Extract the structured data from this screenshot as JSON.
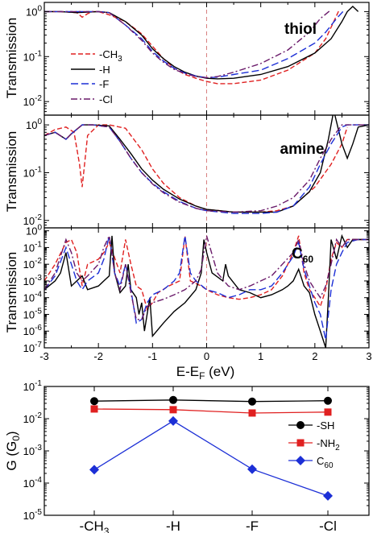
{
  "chart_data": [
    {
      "type": "line",
      "panel_label": "thiol",
      "ylabel": "Transmission",
      "yscale": "log",
      "ylim": [
        0.005,
        1.6
      ],
      "xlim": [
        -3,
        3
      ],
      "y_tick_labels": [
        "10^0",
        "10^-1",
        "10^-2"
      ],
      "legend_position": "left",
      "series": [
        {
          "name": "-CH3",
          "color": "#e02020",
          "dash": "6,3",
          "x": [
            -3,
            -2.7,
            -2.4,
            -2.3,
            -2.2,
            -2.1,
            -2.0,
            -1.8,
            -1.5,
            -1.2,
            -1.0,
            -0.8,
            -0.6,
            -0.4,
            -0.2,
            0.0,
            0.2,
            0.5,
            1.0,
            1.5,
            2.0,
            2.2,
            2.35,
            2.45
          ],
          "y": [
            1.0,
            1.0,
            0.95,
            0.75,
            0.9,
            1.0,
            1.0,
            0.85,
            0.6,
            0.32,
            0.17,
            0.09,
            0.055,
            0.04,
            0.033,
            0.028,
            0.025,
            0.025,
            0.03,
            0.05,
            0.12,
            0.25,
            0.6,
            1.1
          ]
        },
        {
          "name": "-H",
          "color": "#000000",
          "dash": "",
          "x": [
            -3,
            -2.7,
            -2.4,
            -2.0,
            -1.8,
            -1.5,
            -1.2,
            -1.0,
            -0.8,
            -0.6,
            -0.4,
            -0.2,
            0.0,
            0.2,
            0.5,
            1.0,
            1.5,
            2.0,
            2.3,
            2.5,
            2.6,
            2.7,
            2.8
          ],
          "y": [
            1.0,
            1.0,
            0.95,
            1.0,
            0.95,
            0.6,
            0.3,
            0.15,
            0.09,
            0.06,
            0.045,
            0.037,
            0.033,
            0.032,
            0.033,
            0.04,
            0.06,
            0.12,
            0.25,
            0.6,
            1.0,
            1.3,
            1.0
          ]
        },
        {
          "name": "-F",
          "color": "#1c2fd6",
          "dash": "9,4",
          "x": [
            -3,
            -2.7,
            -2.4,
            -2.0,
            -1.8,
            -1.5,
            -1.2,
            -1.0,
            -0.8,
            -0.6,
            -0.4,
            -0.2,
            0.0,
            0.2,
            0.5,
            1.0,
            1.5,
            2.0,
            2.2,
            2.4,
            2.55
          ],
          "y": [
            1.0,
            1.0,
            1.0,
            1.0,
            0.95,
            0.5,
            0.25,
            0.13,
            0.08,
            0.055,
            0.043,
            0.037,
            0.034,
            0.035,
            0.04,
            0.05,
            0.09,
            0.2,
            0.35,
            0.7,
            1.1
          ]
        },
        {
          "name": "-Cl",
          "color": "#6a1a6a",
          "dash": "8,3,2,3",
          "x": [
            -3,
            -2.7,
            -2.4,
            -2.0,
            -1.8,
            -1.5,
            -1.2,
            -1.0,
            -0.8,
            -0.6,
            -0.4,
            -0.2,
            0.0,
            0.2,
            0.5,
            1.0,
            1.5,
            1.9,
            2.1,
            2.3
          ],
          "y": [
            1.0,
            1.0,
            1.0,
            1.0,
            0.95,
            0.5,
            0.23,
            0.12,
            0.075,
            0.052,
            0.042,
            0.036,
            0.034,
            0.036,
            0.045,
            0.07,
            0.14,
            0.35,
            0.7,
            1.1
          ]
        }
      ]
    },
    {
      "type": "line",
      "panel_label": "amine",
      "ylabel": "Transmission",
      "yscale": "log",
      "ylim": [
        0.007,
        1.6
      ],
      "xlim": [
        -3,
        3
      ],
      "y_tick_labels": [
        "10^0",
        "10^-1",
        "10^-2"
      ],
      "series": [
        {
          "name": "-CH3",
          "color": "#e02020",
          "dash": "6,3",
          "x": [
            -3,
            -2.8,
            -2.6,
            -2.45,
            -2.35,
            -2.3,
            -2.2,
            -2.0,
            -1.8,
            -1.5,
            -1.2,
            -1.0,
            -0.8,
            -0.5,
            -0.2,
            0.0,
            0.5,
            1.0,
            1.3,
            1.6,
            2.0,
            2.3,
            2.5,
            2.6
          ],
          "y": [
            0.6,
            0.8,
            0.9,
            0.7,
            0.15,
            0.05,
            0.6,
            1.0,
            1.0,
            0.85,
            0.3,
            0.12,
            0.06,
            0.03,
            0.02,
            0.017,
            0.015,
            0.015,
            0.016,
            0.02,
            0.05,
            0.15,
            0.4,
            0.9
          ]
        },
        {
          "name": "-H",
          "color": "#000000",
          "dash": "",
          "x": [
            -3,
            -2.8,
            -2.6,
            -2.5,
            -2.3,
            -2.1,
            -1.8,
            -1.6,
            -1.4,
            -1.2,
            -1.0,
            -0.8,
            -0.5,
            -0.2,
            0.0,
            0.5,
            1.0,
            1.3,
            1.6,
            1.9,
            2.1,
            2.25,
            2.35,
            2.5,
            2.6,
            2.7,
            2.8,
            3.0
          ],
          "y": [
            0.6,
            0.7,
            0.5,
            0.65,
            1.0,
            1.0,
            0.95,
            0.5,
            0.25,
            0.12,
            0.07,
            0.045,
            0.028,
            0.02,
            0.017,
            0.015,
            0.015,
            0.015,
            0.02,
            0.04,
            0.1,
            0.5,
            2.0,
            0.4,
            0.2,
            0.4,
            0.9,
            1.0
          ]
        },
        {
          "name": "-F",
          "color": "#1c2fd6",
          "dash": "9,4",
          "x": [
            -3,
            -2.8,
            -2.6,
            -2.5,
            -2.3,
            -2.1,
            -1.8,
            -1.6,
            -1.4,
            -1.2,
            -1.0,
            -0.8,
            -0.5,
            -0.2,
            0.0,
            0.5,
            1.0,
            1.3,
            1.6,
            1.9,
            2.1,
            2.3,
            2.5,
            2.6,
            2.8,
            3.0
          ],
          "y": [
            0.6,
            0.7,
            0.5,
            0.65,
            1.0,
            1.0,
            0.9,
            0.45,
            0.2,
            0.1,
            0.06,
            0.04,
            0.025,
            0.018,
            0.016,
            0.014,
            0.014,
            0.015,
            0.02,
            0.05,
            0.15,
            0.4,
            0.9,
            1.0,
            1.0,
            1.0
          ]
        },
        {
          "name": "-Cl",
          "color": "#6a1a6a",
          "dash": "8,3,2,3",
          "x": [
            -3,
            -2.8,
            -2.6,
            -2.5,
            -2.3,
            -2.1,
            -1.8,
            -1.6,
            -1.4,
            -1.2,
            -1.0,
            -0.8,
            -0.5,
            -0.2,
            0.0,
            0.5,
            1.0,
            1.3,
            1.6,
            1.9,
            2.1,
            2.3,
            2.5,
            2.6,
            2.8,
            3.0
          ],
          "y": [
            0.6,
            0.7,
            0.5,
            0.65,
            1.0,
            1.0,
            0.9,
            0.45,
            0.2,
            0.1,
            0.058,
            0.038,
            0.024,
            0.018,
            0.016,
            0.015,
            0.016,
            0.02,
            0.03,
            0.07,
            0.2,
            0.5,
            1.0,
            1.0,
            1.0,
            1.0
          ]
        }
      ]
    },
    {
      "type": "line",
      "panel_label": "C60",
      "ylabel": "Transmission",
      "yscale": "log",
      "ylim": [
        1e-07,
        1.5
      ],
      "xlim": [
        -3,
        3
      ],
      "xlabel": "E-E_F (eV)",
      "x_tick_labels": [
        "-3",
        "-2",
        "-1",
        "0",
        "1",
        "2",
        "3"
      ],
      "y_tick_labels": [
        "10^0",
        "10^-1",
        "10^-2",
        "10^-3",
        "10^-4",
        "10^-5",
        "10^-6",
        "10^-7"
      ],
      "series": [
        {
          "name": "-CH3",
          "color": "#e02020",
          "dash": "6,3",
          "x": [
            -3,
            -2.8,
            -2.6,
            -2.5,
            -2.4,
            -2.3,
            -2.2,
            -2.0,
            -1.9,
            -1.8,
            -1.6,
            -1.5,
            -1.4,
            -1.3,
            -1.2,
            -1.1,
            -1.0,
            -0.9,
            -0.7,
            -0.5,
            -0.4,
            -0.3,
            -0.1,
            0.0,
            0.2,
            0.4,
            0.6,
            0.8,
            1.0,
            1.2,
            1.4,
            1.6,
            1.7,
            1.8,
            1.9,
            2.0,
            2.1,
            2.2,
            2.3,
            2.4,
            2.5,
            2.6,
            2.8,
            3.0
          ],
          "y": [
            0.001,
            0.01,
            0.2,
            0.3,
            0.05,
            0.0005,
            0.01,
            0.02,
            0.05,
            0.2,
            0.003,
            0.3,
            0.01,
            0.0005,
            0.0003,
            2e-05,
            5e-05,
            0.0002,
            0.0005,
            0.001,
            0.5,
            0.001,
            0.0005,
            0.0003,
            0.00015,
            0.0001,
            8e-05,
            0.0001,
            0.00015,
            0.0003,
            0.002,
            0.05,
            0.5,
            0.003,
            0.0003,
            0.0001,
            3e-05,
            0.0003,
            0.02,
            0.2,
            0.1,
            0.3,
            0.3,
            0.3
          ]
        },
        {
          "name": "-H",
          "color": "#000000",
          "dash": "",
          "x": [
            -3,
            -2.8,
            -2.7,
            -2.6,
            -2.5,
            -2.4,
            -2.3,
            -2.2,
            -2.0,
            -1.9,
            -1.8,
            -1.75,
            -1.7,
            -1.6,
            -1.5,
            -1.45,
            -1.4,
            -1.3,
            -1.25,
            -1.2,
            -1.15,
            -1.1,
            -1.05,
            -1.0,
            -0.8,
            -0.6,
            -0.4,
            -0.2,
            -0.1,
            -0.05,
            0.0,
            0.1,
            0.3,
            0.35,
            0.4,
            0.6,
            0.8,
            1.0,
            1.2,
            1.4,
            1.5,
            1.6,
            1.7,
            1.8,
            1.9,
            2.0,
            2.1,
            2.2,
            2.25,
            2.3,
            2.4,
            2.5,
            2.6,
            2.7,
            3.0
          ],
          "y": [
            0.0003,
            0.001,
            0.003,
            0.05,
            0.0005,
            0.001,
            0.002,
            0.0003,
            0.0005,
            0.001,
            0.002,
            0.5,
            0.003,
            0.0002,
            0.0005,
            0.01,
            0.0003,
            0.0001,
            1e-05,
            5e-05,
            1e-06,
            1e-05,
            0.0001,
            5e-07,
            3e-06,
            1.5e-05,
            5e-05,
            0.0003,
            0.003,
            0.3,
            0.05,
            0.003,
            0.001,
            0.01,
            0.002,
            0.0003,
            0.0002,
            0.0001,
            0.00015,
            0.0003,
            0.0005,
            0.001,
            0.005,
            0.0005,
            0.0002,
            1e-05,
            1e-06,
            1e-07,
            0.0001,
            0.3,
            0.02,
            0.5,
            0.1,
            0.3,
            0.3
          ]
        },
        {
          "name": "-F",
          "color": "#1c2fd6",
          "dash": "9,4",
          "x": [
            -3,
            -2.8,
            -2.6,
            -2.5,
            -2.4,
            -2.3,
            -2.2,
            -2.0,
            -1.9,
            -1.8,
            -1.7,
            -1.6,
            -1.5,
            -1.4,
            -1.3,
            -1.2,
            -1.1,
            -1.0,
            -0.8,
            -0.6,
            -0.5,
            -0.4,
            -0.3,
            -0.2,
            0.0,
            0.2,
            0.4,
            0.6,
            0.8,
            1.0,
            1.2,
            1.4,
            1.6,
            1.7,
            1.8,
            1.9,
            2.0,
            2.1,
            2.2,
            2.3,
            2.4,
            2.5,
            2.6,
            2.8,
            3.0
          ],
          "y": [
            0.0003,
            0.002,
            0.1,
            0.01,
            0.001,
            0.0003,
            0.001,
            0.003,
            0.02,
            0.5,
            0.003,
            0.0005,
            0.01,
            0.0003,
            3e-06,
            5e-06,
            5e-05,
            0.00015,
            0.0003,
            0.001,
            0.003,
            0.5,
            0.003,
            0.001,
            0.0003,
            0.0002,
            0.0001,
            0.00015,
            0.0003,
            0.0003,
            0.0005,
            0.003,
            0.03,
            0.2,
            0.005,
            0.0005,
            5e-05,
            1e-05,
            3e-07,
            0.0003,
            0.01,
            0.05,
            0.2,
            0.3,
            0.3
          ]
        },
        {
          "name": "-Cl",
          "color": "#6a1a6a",
          "dash": "8,3,2,3",
          "x": [
            -3,
            -2.8,
            -2.6,
            -2.5,
            -2.4,
            -2.3,
            -2.2,
            -2.0,
            -1.9,
            -1.8,
            -1.7,
            -1.6,
            -1.5,
            -1.4,
            -1.3,
            -1.2,
            -1.1,
            -1.0,
            -0.8,
            -0.6,
            -0.4,
            -0.2,
            -0.1,
            0.0,
            0.2,
            0.4,
            0.6,
            0.8,
            1.0,
            1.2,
            1.4,
            1.6,
            1.7,
            1.8,
            1.9,
            2.0,
            2.1,
            2.2,
            2.3,
            2.4,
            2.5,
            2.6,
            2.8,
            3.0
          ],
          "y": [
            0.0003,
            0.003,
            0.3,
            0.05,
            0.003,
            0.001,
            0.002,
            0.01,
            0.1,
            0.5,
            0.003,
            0.0003,
            0.01,
            0.0002,
            5e-06,
            5e-06,
            3e-05,
            5e-05,
            8e-05,
            0.00015,
            0.0003,
            0.001,
            0.005,
            0.5,
            0.003,
            0.0005,
            0.0003,
            0.0005,
            0.001,
            0.002,
            0.01,
            0.05,
            0.3,
            0.01,
            0.001,
            0.0003,
            0.0001,
            0.0005,
            0.01,
            0.3,
            0.1,
            0.3,
            0.3,
            0.3
          ]
        }
      ]
    },
    {
      "type": "line",
      "ylabel": "G (G_0)",
      "yscale": "log",
      "ylim": [
        1e-05,
        0.1
      ],
      "y_tick_labels": [
        "10^-1",
        "10^-2",
        "10^-3",
        "10^-4",
        "10^-5"
      ],
      "categories": [
        "-CH3",
        "-H",
        "-F",
        "-Cl"
      ],
      "legend_position": "right",
      "series": [
        {
          "name": "-SH",
          "color": "#000000",
          "marker": "circle",
          "values": [
            0.035,
            0.038,
            0.034,
            0.036
          ]
        },
        {
          "name": "-NH2",
          "color": "#e02020",
          "marker": "square",
          "values": [
            0.02,
            0.019,
            0.015,
            0.016
          ]
        },
        {
          "name": "C60",
          "color": "#1c2fd6",
          "marker": "diamond",
          "values": [
            0.00026,
            0.0085,
            0.00027,
            4e-05
          ]
        }
      ]
    }
  ],
  "labels": {
    "thiol": "thiol",
    "amine": "amine",
    "c60": "C",
    "c60_sub": "60",
    "transmission": "Transmission",
    "xlabel_main": "E-E",
    "xlabel_sub": "F",
    "xlabel_unit": " (eV)",
    "g_ylabel_main": "G (G",
    "g_ylabel_sub": "0",
    "g_ylabel_close": ")",
    "leg_ch3": "-CH",
    "leg_ch3_sub": "3",
    "leg_h": "-H",
    "leg_f": "-F",
    "leg_cl": "-Cl",
    "leg_sh": "-SH",
    "leg_nh2": "-NH",
    "leg_nh2_sub": "2",
    "leg_c60": "C",
    "leg_c60_sub": "60"
  }
}
